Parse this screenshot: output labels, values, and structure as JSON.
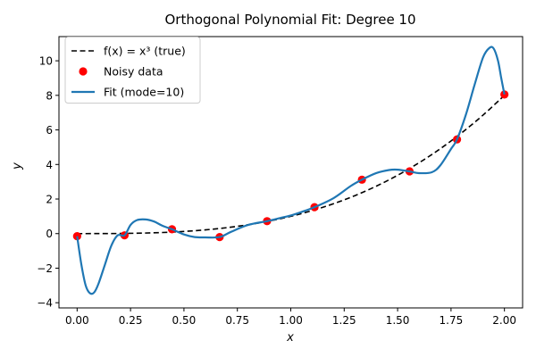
{
  "chart_data": {
    "type": "line",
    "title": "Orthogonal Polynomial Fit: Degree 10",
    "xlabel": "x",
    "ylabel": "y",
    "xlim": [
      -0.085,
      2.085
    ],
    "ylim": [
      -4.3,
      11.4
    ],
    "x_ticks": [
      0.0,
      0.25,
      0.5,
      0.75,
      1.0,
      1.25,
      1.5,
      1.75,
      2.0
    ],
    "x_tick_labels": [
      "0.00",
      "0.25",
      "0.50",
      "0.75",
      "1.00",
      "1.25",
      "1.50",
      "1.75",
      "2.00"
    ],
    "y_ticks": [
      -4,
      -2,
      0,
      2,
      4,
      6,
      8,
      10
    ],
    "y_tick_labels": [
      "−4",
      "−2",
      "0",
      "2",
      "4",
      "6",
      "8",
      "10"
    ],
    "grid": false,
    "legend_position": "top-left",
    "series": [
      {
        "name": "f(x) = x³ (true)",
        "kind": "line",
        "style": "dashed",
        "color": "#000000",
        "x": [
          0.0,
          0.1,
          0.2,
          0.3,
          0.4,
          0.5,
          0.6,
          0.7,
          0.8,
          0.9,
          1.0,
          1.1,
          1.2,
          1.3,
          1.4,
          1.5,
          1.6,
          1.7,
          1.8,
          1.9,
          2.0
        ],
        "y": [
          0.0,
          0.001,
          0.008,
          0.027,
          0.064,
          0.125,
          0.216,
          0.343,
          0.512,
          0.729,
          1.0,
          1.331,
          1.728,
          2.197,
          2.744,
          3.375,
          4.096,
          4.913,
          5.832,
          6.859,
          8.0
        ]
      },
      {
        "name": "Noisy data",
        "kind": "scatter",
        "color": "#ff0000",
        "x": [
          0.0,
          0.222,
          0.444,
          0.667,
          0.889,
          1.111,
          1.333,
          1.556,
          1.778,
          2.0
        ],
        "y": [
          -0.15,
          -0.1,
          0.25,
          -0.2,
          0.72,
          1.53,
          3.12,
          3.6,
          5.45,
          8.05
        ]
      },
      {
        "name": "Fit (mode=10)",
        "kind": "line",
        "style": "solid",
        "color": "#1f77b4",
        "x": [
          0.0,
          0.02,
          0.04,
          0.06,
          0.08,
          0.1,
          0.13,
          0.16,
          0.19,
          0.222,
          0.25,
          0.28,
          0.32,
          0.36,
          0.4,
          0.444,
          0.5,
          0.55,
          0.6,
          0.667,
          0.72,
          0.8,
          0.889,
          0.95,
          1.0,
          1.05,
          1.111,
          1.2,
          1.28,
          1.333,
          1.4,
          1.46,
          1.5,
          1.556,
          1.6,
          1.66,
          1.7,
          1.75,
          1.778,
          1.82,
          1.86,
          1.9,
          1.93,
          1.95,
          1.97,
          1.985,
          2.0
        ],
        "y": [
          -0.15,
          -1.8,
          -3.0,
          -3.45,
          -3.4,
          -2.9,
          -1.8,
          -0.7,
          -0.1,
          -0.1,
          0.5,
          0.78,
          0.82,
          0.7,
          0.45,
          0.25,
          -0.05,
          -0.2,
          -0.22,
          -0.2,
          0.1,
          0.5,
          0.72,
          0.9,
          1.05,
          1.25,
          1.53,
          2.05,
          2.75,
          3.12,
          3.5,
          3.68,
          3.7,
          3.6,
          3.5,
          3.55,
          3.95,
          4.9,
          5.45,
          6.9,
          8.6,
          10.2,
          10.75,
          10.7,
          10.0,
          9.0,
          8.05
        ]
      }
    ]
  }
}
